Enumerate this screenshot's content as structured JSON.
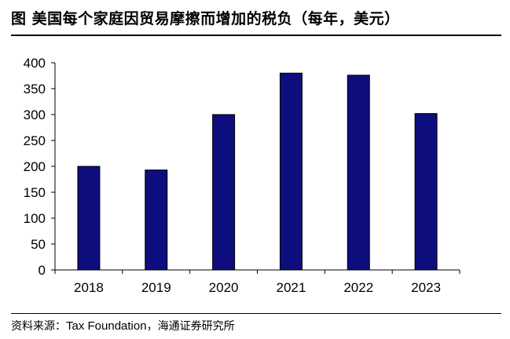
{
  "title": "图 美国每个家庭因贸易摩擦而增加的税负（每年，美元）",
  "source": {
    "prefix": "资料来源：",
    "org": "Tax Foundation",
    "suffix": "，海通证券研究所"
  },
  "chart_data": {
    "type": "bar",
    "categories": [
      "2018",
      "2019",
      "2020",
      "2021",
      "2022",
      "2023"
    ],
    "values": [
      200,
      193,
      300,
      380,
      376,
      302
    ],
    "title": "",
    "xlabel": "",
    "ylabel": "",
    "ylim": [
      0,
      400
    ],
    "yticks": [
      "0",
      "50",
      "100",
      "150",
      "200",
      "250",
      "300",
      "350",
      "400"
    ],
    "grid": false,
    "legend": "none",
    "colors": {
      "bar": "#0d0d7e",
      "bar_border": "#000000",
      "axis": "#000000"
    }
  }
}
